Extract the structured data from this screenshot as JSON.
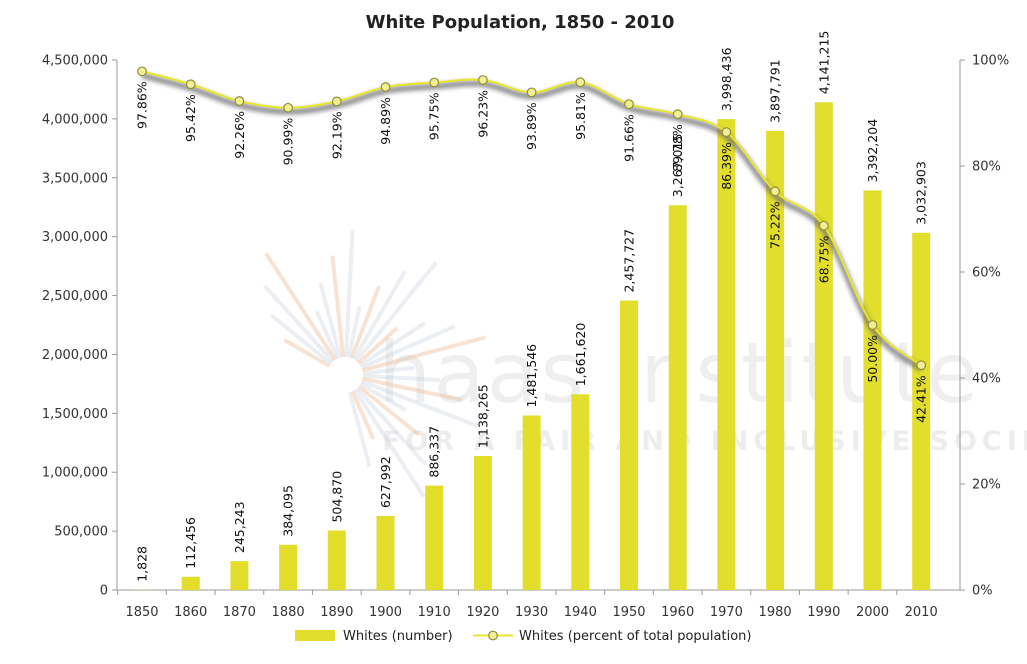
{
  "chart_data": {
    "type": "bar",
    "title": "White Population, 1850 - 2010",
    "categories": [
      "1850",
      "1860",
      "1870",
      "1880",
      "1890",
      "1900",
      "1910",
      "1920",
      "1930",
      "1940",
      "1950",
      "1960",
      "1970",
      "1980",
      "1990",
      "2000",
      "2010"
    ],
    "series": [
      {
        "name": "Whites (number)",
        "type": "bar",
        "axis": "left",
        "color": "#e2de2b",
        "values": [
          1828,
          112456,
          245243,
          384095,
          504870,
          627992,
          886337,
          1138265,
          1481546,
          1661620,
          2457727,
          3267015,
          3998436,
          3897791,
          4141215,
          3392204,
          3032903
        ],
        "labels": [
          "1,828",
          "112,456",
          "245,243",
          "384,095",
          "504,870",
          "627,992",
          "886,337",
          "1,138,265",
          "1,481,546",
          "1,661,620",
          "2,457,727",
          "3,267,015",
          "3,998,436",
          "3,897,791",
          "4,141,215",
          "3,392,204",
          "3,032,903"
        ]
      },
      {
        "name": "Whites (percent of total population)",
        "type": "line",
        "axis": "right",
        "color": "#e8e62a",
        "values": [
          97.86,
          95.42,
          92.26,
          90.99,
          92.19,
          94.89,
          95.75,
          96.23,
          93.89,
          95.81,
          91.66,
          89.78,
          86.39,
          75.22,
          68.75,
          50.0,
          42.41
        ],
        "labels": [
          "97.86%",
          "95.42%",
          "92.26%",
          "90.99%",
          "92.19%",
          "94.89%",
          "95.75%",
          "96.23%",
          "93.89%",
          "95.81%",
          "91.66%",
          "89.78%",
          "86.39%",
          "75.22%",
          "68.75%",
          "50.00%",
          "42.41%"
        ]
      }
    ],
    "y_left": {
      "range": [
        0,
        4500000
      ],
      "ticks": [
        0,
        500000,
        1000000,
        1500000,
        2000000,
        2500000,
        3000000,
        3500000,
        4000000,
        4500000
      ],
      "tick_labels": [
        "0",
        "500,000",
        "1,000,000",
        "1,500,000",
        "2,000,000",
        "2,500,000",
        "3,000,000",
        "3,500,000",
        "4,000,000",
        "4,500,000"
      ]
    },
    "y_right": {
      "range": [
        0,
        100
      ],
      "ticks": [
        0,
        20,
        40,
        60,
        80,
        100
      ],
      "tick_labels": [
        "0%",
        "20%",
        "40%",
        "60%",
        "80%",
        "100%"
      ]
    },
    "grid": false,
    "legend": "bottom"
  },
  "watermark": {
    "name": "haas institute",
    "tagline": "FOR A FAIR AND INCLUSIVE SOCIETY"
  }
}
